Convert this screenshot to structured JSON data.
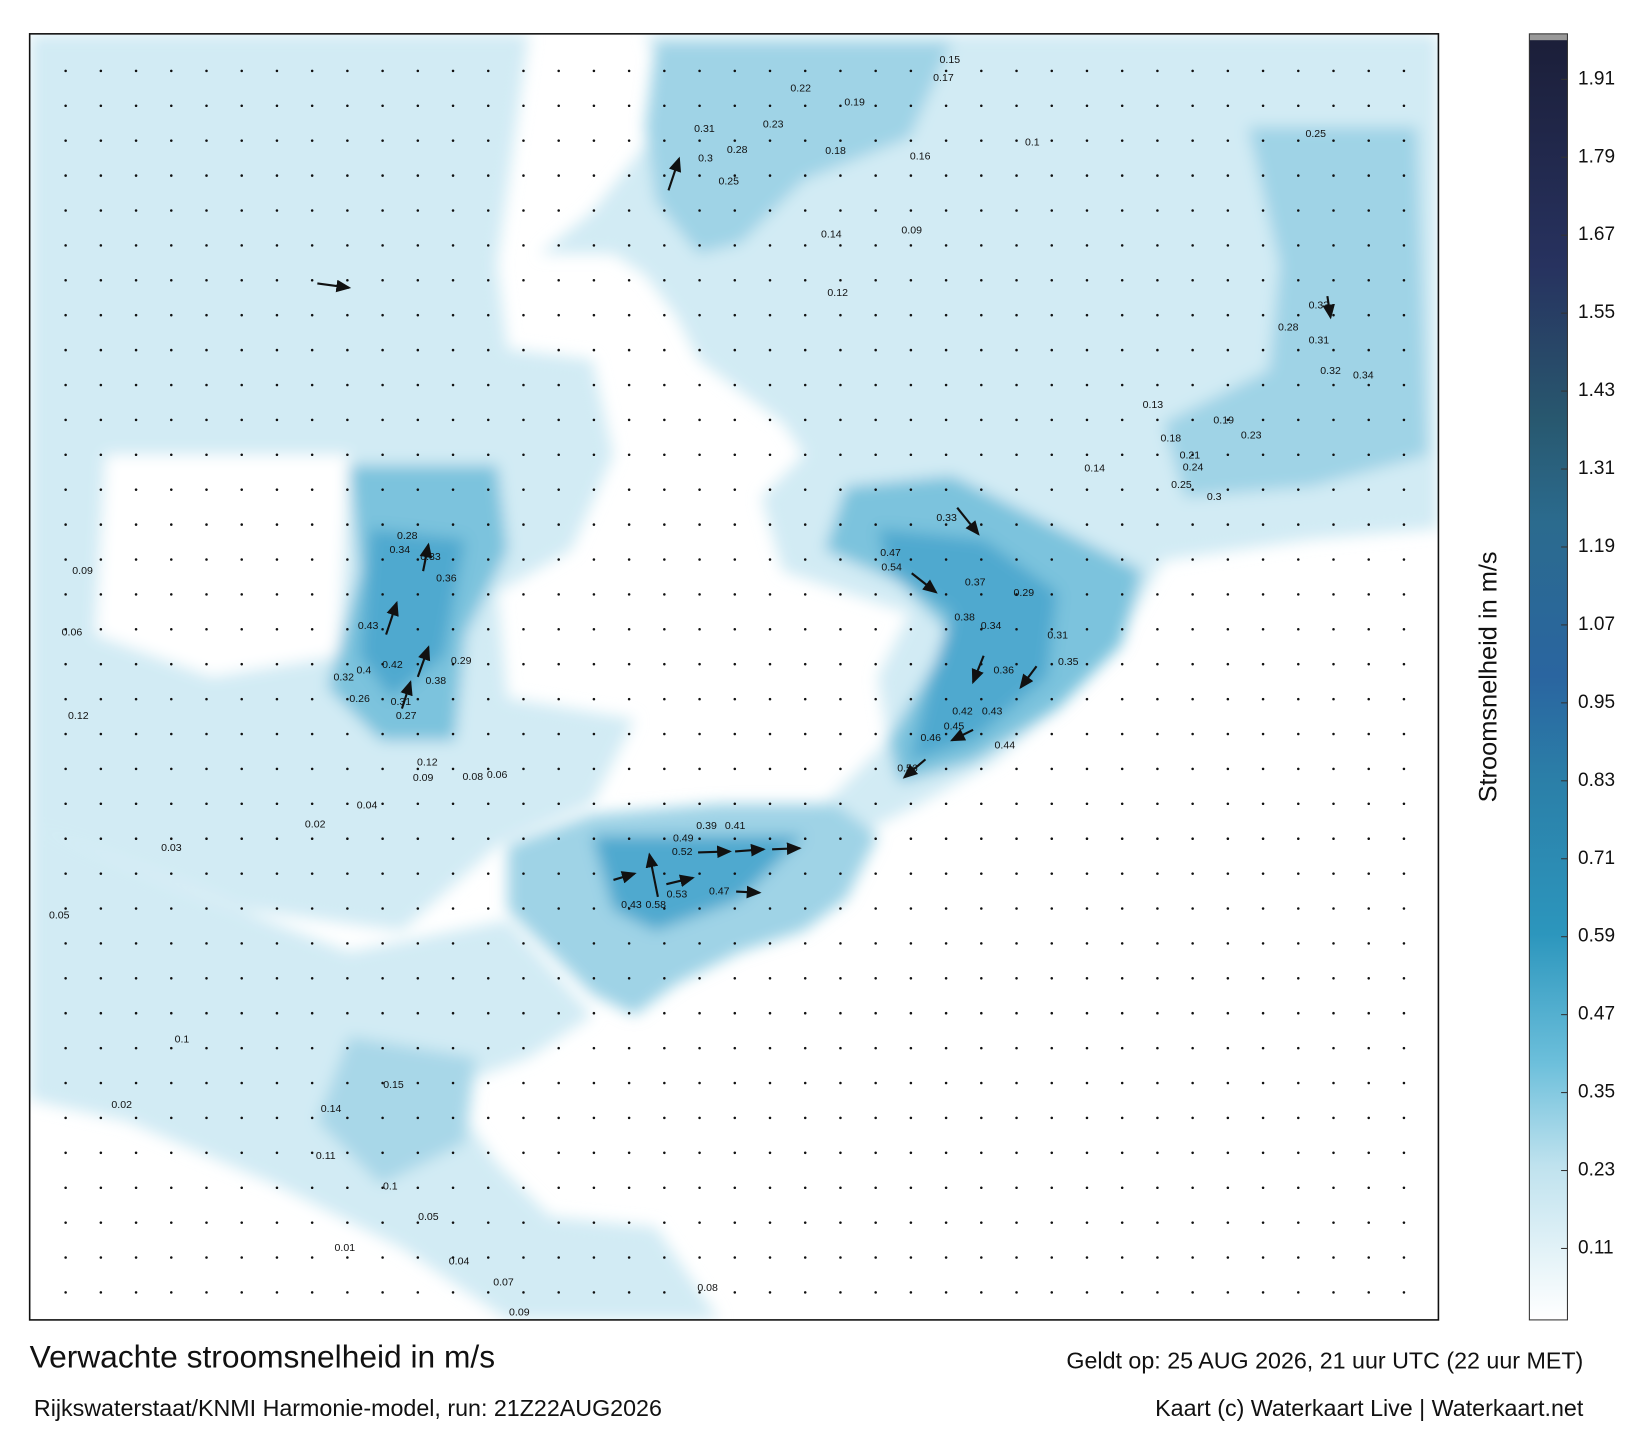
{
  "header": {
    "title": "Verwachte stroomsnelheid in m/s",
    "subtitle": "Rijkswaterstaat/KNMI Harmonie-model, run: 21Z22AUG2026",
    "valid_time": "Geldt op: 25 AUG 2026, 21 uur UTC (22 uur MET)",
    "credit": "Kaart (c) Waterkaart Live | Waterkaart.net"
  },
  "colorbar": {
    "label": "Stroomsnelheid in m/s",
    "range": [
      0,
      1.98
    ],
    "ticks": [
      0.11,
      0.23,
      0.35,
      0.47,
      0.59,
      0.71,
      0.83,
      0.95,
      1.07,
      1.19,
      1.31,
      1.43,
      1.55,
      1.67,
      1.79,
      1.91
    ]
  },
  "map": {
    "labels": [
      "0.52",
      "0.47",
      "0.49",
      "0.41",
      "0.39",
      "0.53",
      "0.58",
      "0.43",
      "0.56",
      "0.54",
      "0.47",
      "0.46",
      "0.45",
      "0.43",
      "0.42",
      "0.44",
      "0.37",
      "0.38",
      "0.36",
      "0.34",
      "0.35",
      "0.33",
      "0.31",
      "0.29",
      "0.32",
      "0.34",
      "0.33",
      "0.31",
      "0.28",
      "0.25",
      "0.36",
      "0.33",
      "0.34",
      "0.42",
      "0.43",
      "0.4",
      "0.38",
      "0.29",
      "0.31",
      "0.27",
      "0.32",
      "0.28",
      "0.26",
      "0.23",
      "0.28",
      "0.31",
      "0.3",
      "0.25",
      "0.22",
      "0.19",
      "0.18",
      "0.16",
      "0.15",
      "0.17",
      "0.14",
      "0.12",
      "0.09",
      "0.1",
      "0.13",
      "0.14",
      "0.19",
      "0.23",
      "0.21",
      "0.24",
      "0.25",
      "0.3",
      "0.18",
      "0.12",
      "0.09",
      "0.08",
      "0.06",
      "0.04",
      "0.02",
      "0.03",
      "0.05",
      "0.1",
      "0.15",
      "0.14",
      "0.11",
      "0.1",
      "0.05",
      "0.04",
      "0.07",
      "0.09",
      "0.08",
      "0.01",
      "0.02",
      "0.06",
      "0.12",
      "0.09"
    ]
  }
}
